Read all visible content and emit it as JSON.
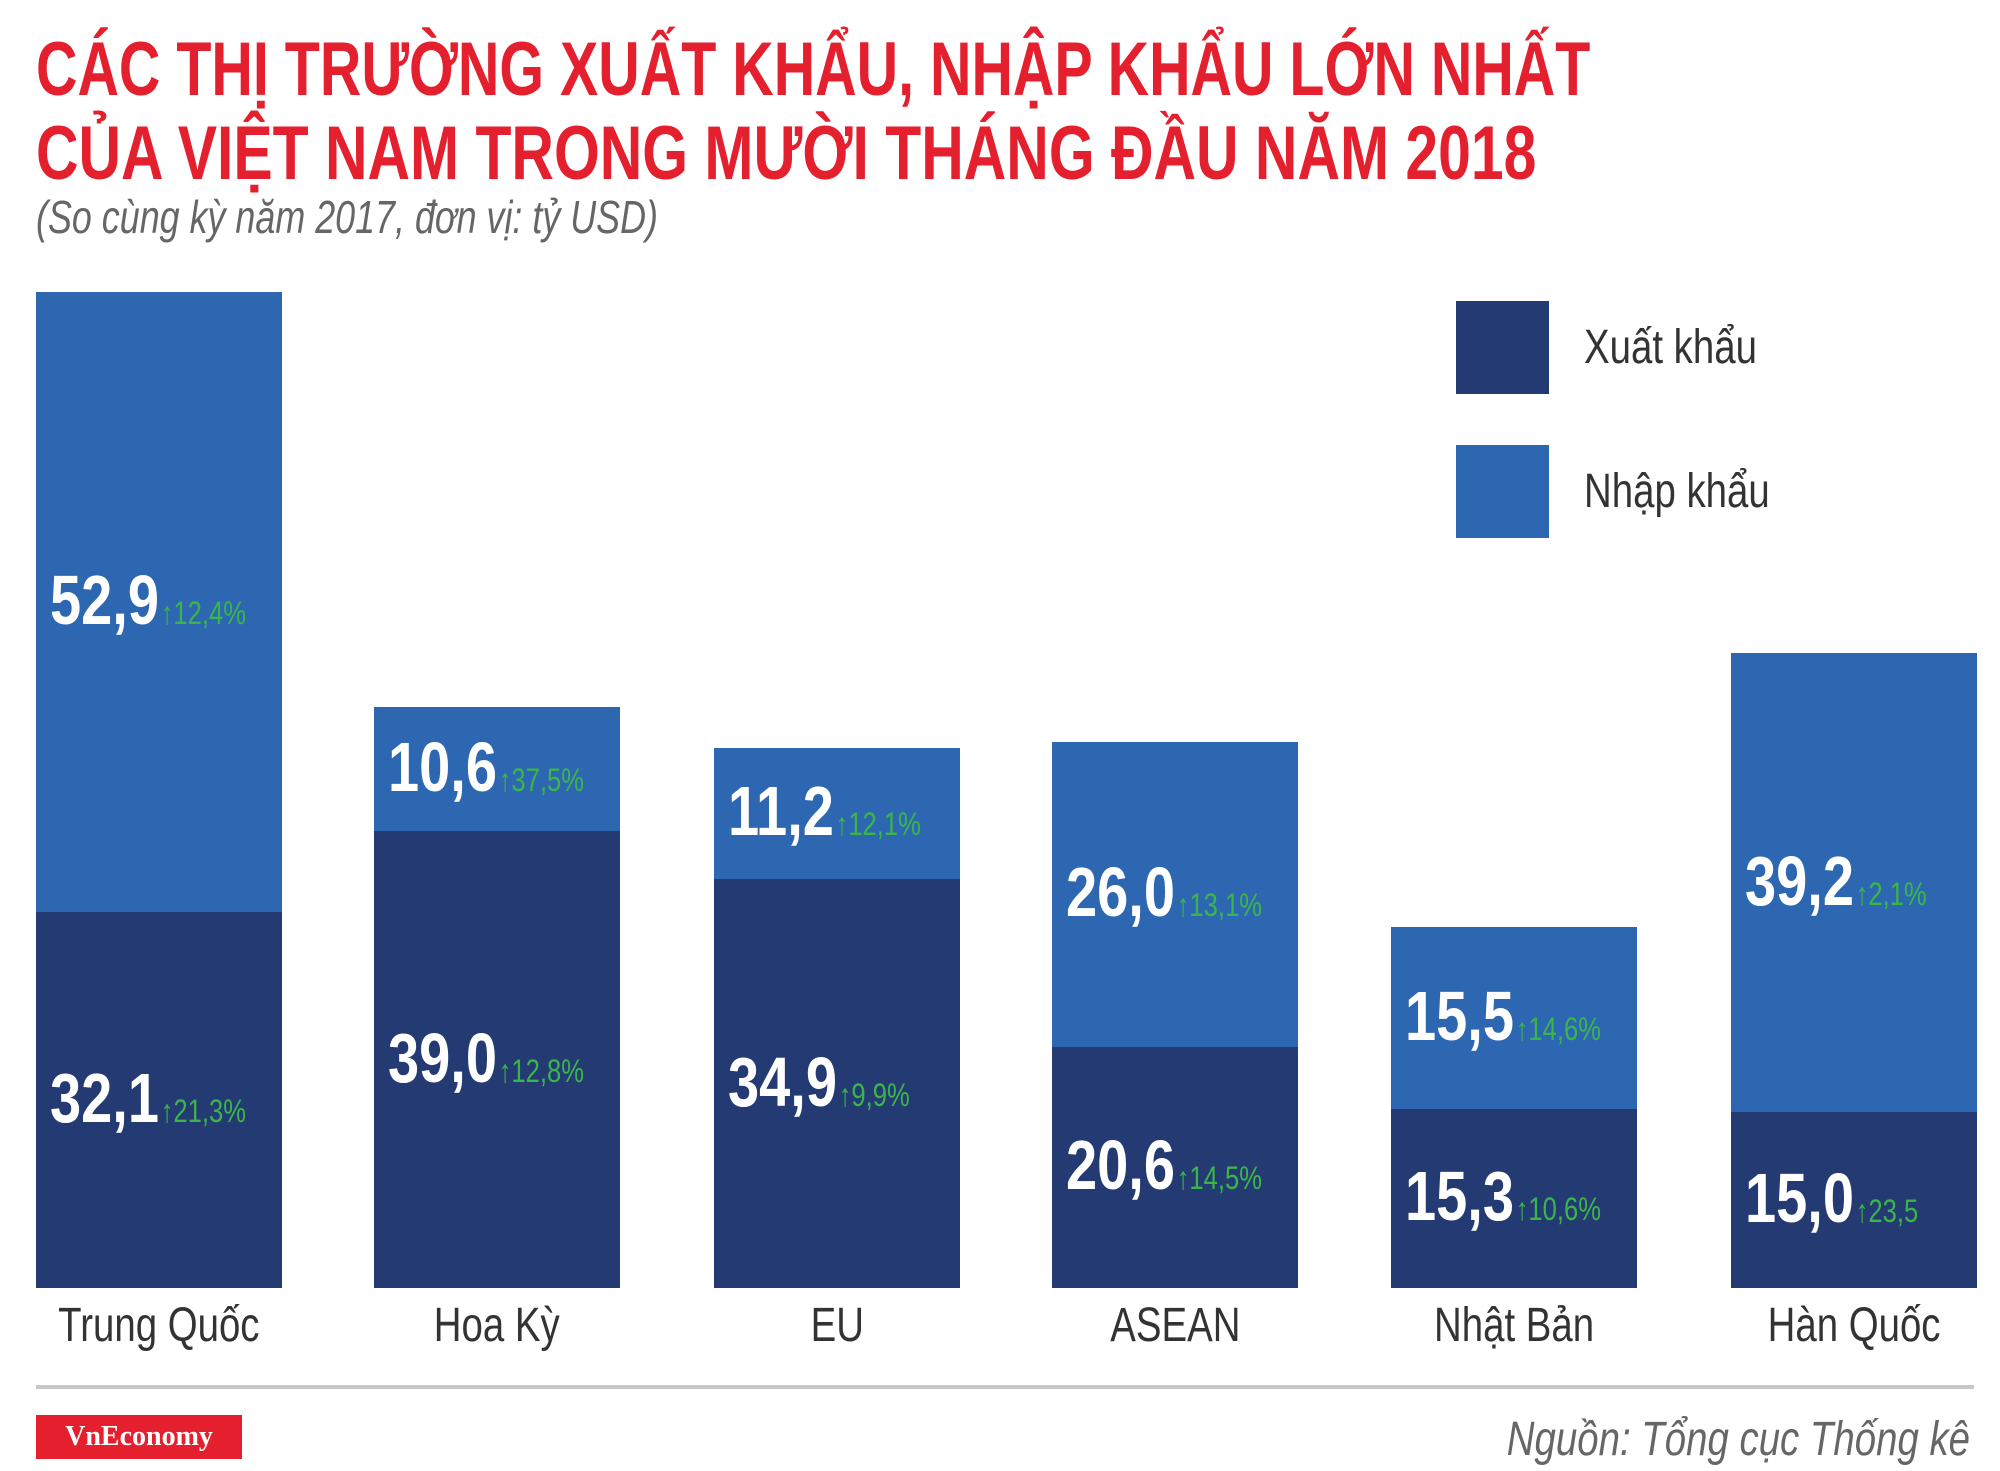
{
  "title_lines": [
    "CÁC THỊ TRƯỜNG XUẤT KHẨU, NHẬP KHẨU LỚN NHẤT",
    "CỦA VIỆT NAM TRONG MƯỜI THÁNG ĐẦU NĂM 2018"
  ],
  "subtitle": "(So cùng kỳ năm 2017, đơn vị: tỷ USD)",
  "source": "Nguồn: Tổng cục Thống kê",
  "logo_text": "VnEconomy",
  "colors": {
    "export": "#243a73",
    "import": "#2e67b1",
    "growth": "#3ab54a",
    "title": "#e5202e"
  },
  "chart_data": {
    "type": "bar",
    "stacked": true,
    "title": "CÁC THỊ TRƯỜNG XUẤT KHẨU, NHẬP KHẨU LỚN NHẤT CỦA VIỆT NAM TRONG MƯỜI THÁNG ĐẦU NĂM 2018",
    "subtitle": "(So cùng kỳ năm 2017, đơn vị: tỷ USD)",
    "categories": [
      "Trung Quốc",
      "Hoa Kỳ",
      "EU",
      "ASEAN",
      "Nhật Bản",
      "Hàn Quốc"
    ],
    "series": [
      {
        "name": "Xuất khẩu",
        "values": [
          32.1,
          39.0,
          34.9,
          20.6,
          15.3,
          15.0
        ],
        "labels": [
          "32,1",
          "39,0",
          "34,9",
          "20,6",
          "15,3",
          "15,0"
        ],
        "growth": [
          "21,3%",
          "12,8%",
          "9,9%",
          "14,5%",
          "10,6%",
          "23,5"
        ]
      },
      {
        "name": "Nhập khẩu",
        "values": [
          52.9,
          10.6,
          11.2,
          26.0,
          15.5,
          39.2
        ],
        "labels": [
          "52,9",
          "10,6",
          "11,2",
          "26,0",
          "15,5",
          "39,2"
        ],
        "growth": [
          "12,4%",
          "37,5%",
          "12,1%",
          "13,1%",
          "14,6%",
          "2,1%"
        ]
      }
    ],
    "growth_direction": "up",
    "ylim": [
      0,
      85
    ],
    "grid": false,
    "legend": "top-right"
  }
}
